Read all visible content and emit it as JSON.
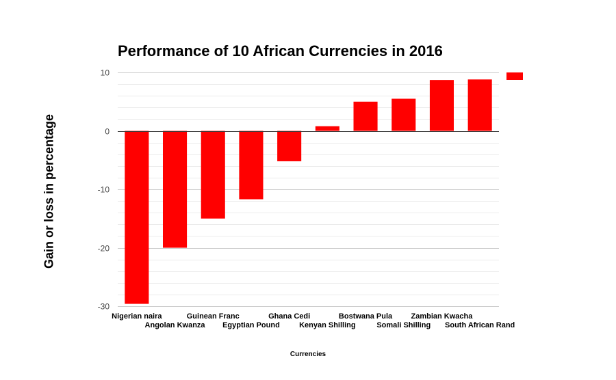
{
  "colors": {
    "bar": "#ff0000",
    "legend_swatch": "#ff0000",
    "major_grid": "#cccccc",
    "minor_grid": "#ebebeb",
    "zero_line": "#333333",
    "tick_text": "#444444"
  },
  "chart_data": {
    "type": "bar",
    "title": "Performance of 10 African Currencies in 2016",
    "xlabel": "Currencies",
    "ylabel": "Gain or loss in percentage",
    "categories": [
      "Nigerian naira",
      "Angolan Kwanza",
      "Guinean Franc",
      "Egyptian Pound",
      "Ghana Cedi",
      "Kenyan Shilling",
      "Bostwana Pula",
      "Somali Shilling",
      "Zambian Kwacha",
      "South African Rand"
    ],
    "values": [
      -29.6,
      -20.0,
      -15.0,
      -11.7,
      -5.2,
      0.8,
      5.0,
      5.5,
      8.7,
      8.8
    ],
    "ylim": [
      -30,
      10
    ],
    "yticks": [
      10,
      0,
      -10,
      -20,
      -30
    ],
    "ytick_labels": [
      "10",
      "0",
      "-10",
      "-20",
      "-30"
    ],
    "grid": true,
    "legend": {
      "position": "right",
      "entries": [
        ""
      ]
    }
  }
}
